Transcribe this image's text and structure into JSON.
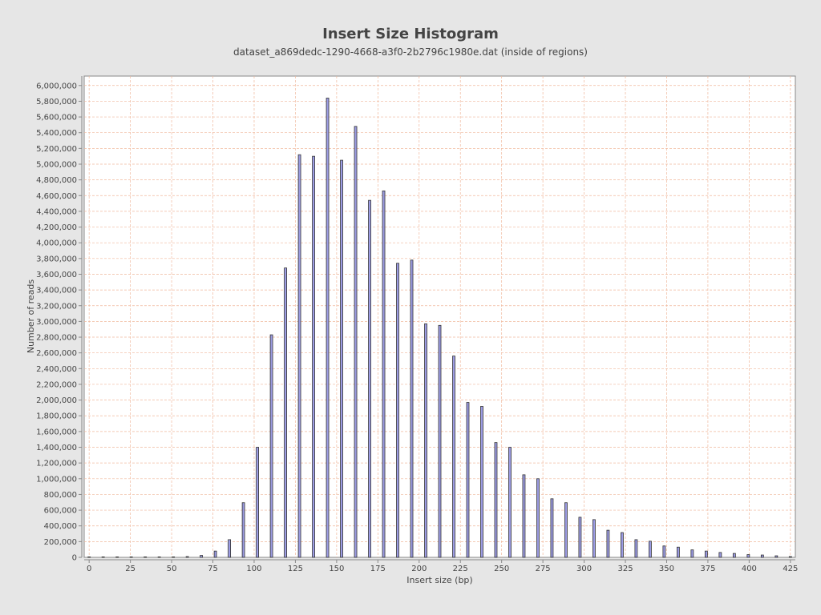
{
  "chart_data": {
    "type": "bar",
    "title": "Insert Size Histogram",
    "subtitle": "dataset_a869dedc-1290-4668-a3f0-2b2796c1980e.dat (inside of regions)",
    "xlabel": "Insert size (bp)",
    "ylabel": "Number of reads",
    "xlim": [
      -3,
      428
    ],
    "ylim": [
      0,
      6120000
    ],
    "x_ticks": [
      0,
      25,
      50,
      75,
      100,
      125,
      150,
      175,
      200,
      225,
      250,
      275,
      300,
      325,
      350,
      375,
      400,
      425
    ],
    "y_ticks": [
      0,
      200000,
      400000,
      600000,
      800000,
      1000000,
      1200000,
      1400000,
      1600000,
      1800000,
      2000000,
      2200000,
      2400000,
      2600000,
      2800000,
      3000000,
      3200000,
      3400000,
      3600000,
      3800000,
      4000000,
      4200000,
      4400000,
      4600000,
      4800000,
      5000000,
      5200000,
      5400000,
      5600000,
      5800000,
      6000000
    ],
    "y_tick_labels": [
      "0",
      "200,000",
      "400,000",
      "600,000",
      "800,000",
      "1,000,000",
      "1,200,000",
      "1,400,000",
      "1,600,000",
      "1,800,000",
      "2,000,000",
      "2,200,000",
      "2,400,000",
      "2,600,000",
      "2,800,000",
      "3,000,000",
      "3,200,000",
      "3,400,000",
      "3,600,000",
      "3,800,000",
      "4,000,000",
      "4,200,000",
      "4,400,000",
      "4,600,000",
      "4,800,000",
      "5,000,000",
      "5,200,000",
      "5,400,000",
      "5,600,000",
      "5,800,000",
      "6,000,000"
    ],
    "grid": true,
    "colors": {
      "bar_fill": "#9c9ce4",
      "bar_stroke": "#333333",
      "grid": "#f0b89c",
      "plot_bg": "#ffffff",
      "page_bg": "#e6e6e6",
      "text": "#444444"
    },
    "x": [
      0,
      8.5,
      17,
      25.5,
      34,
      42.5,
      51,
      59.5,
      68,
      76.5,
      85,
      93.5,
      102,
      110.5,
      119,
      127.5,
      136,
      144.5,
      153,
      161.5,
      170,
      178.5,
      187,
      195.5,
      204,
      212.5,
      221,
      229.5,
      238,
      246.5,
      255,
      263.5,
      272,
      280.5,
      289,
      297.5,
      306,
      314.5,
      323,
      331.5,
      340,
      348.5,
      357,
      365.5,
      374,
      382.5,
      391,
      399.5,
      408,
      416.5,
      425
    ],
    "values": [
      2000,
      2000,
      2000,
      2000,
      2000,
      2000,
      5000,
      10000,
      25000,
      80000,
      225000,
      695000,
      1400000,
      2830000,
      3680000,
      5120000,
      5100000,
      5840000,
      5050000,
      5480000,
      4540000,
      4660000,
      3740000,
      3780000,
      2970000,
      2950000,
      2560000,
      1970000,
      1920000,
      1460000,
      1400000,
      1050000,
      1000000,
      745000,
      695000,
      510000,
      480000,
      345000,
      315000,
      225000,
      205000,
      145000,
      130000,
      95000,
      80000,
      62000,
      50000,
      35000,
      30000,
      20000,
      10000
    ]
  }
}
